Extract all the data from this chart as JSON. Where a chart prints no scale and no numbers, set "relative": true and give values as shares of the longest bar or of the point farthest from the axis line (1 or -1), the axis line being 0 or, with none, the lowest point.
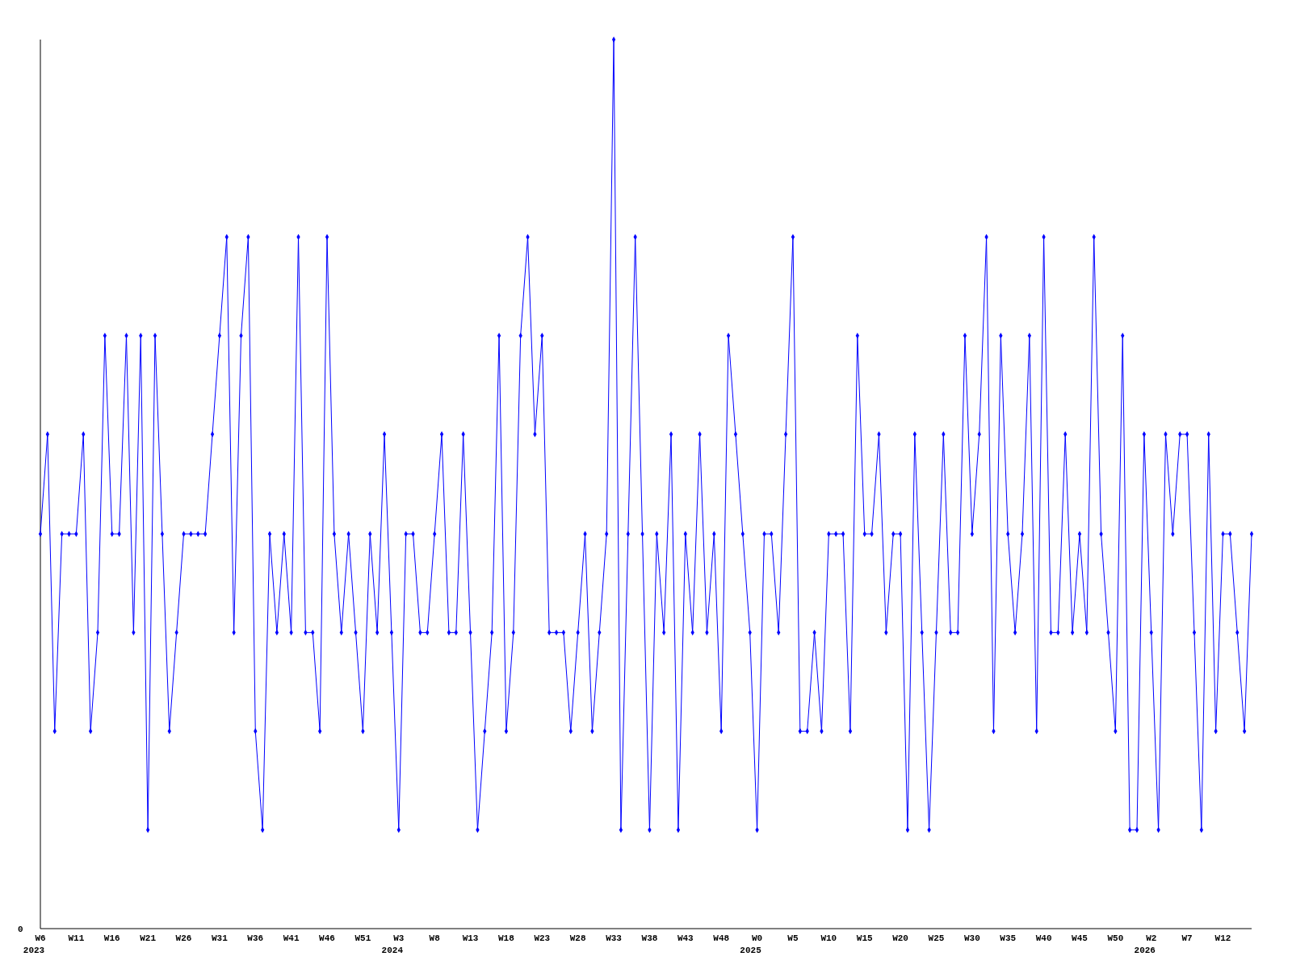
{
  "chart_data": {
    "type": "line",
    "relative": true,
    "marker": "diamond",
    "annotations": [
      "0",
      "2023",
      "2024",
      "2025",
      "2026"
    ],
    "categories": [
      "W6",
      null,
      null,
      null,
      null,
      "W11",
      null,
      null,
      null,
      null,
      "W16",
      null,
      null,
      null,
      null,
      "W21",
      null,
      null,
      null,
      null,
      "W26",
      null,
      null,
      null,
      null,
      "W31",
      null,
      null,
      null,
      null,
      "W36",
      null,
      null,
      null,
      null,
      "W41",
      null,
      null,
      null,
      null,
      "W46",
      null,
      null,
      null,
      null,
      "W51",
      null,
      null,
      null,
      null,
      "W3",
      null,
      null,
      null,
      null,
      "W8",
      null,
      null,
      null,
      null,
      "W13",
      null,
      null,
      null,
      null,
      "W18",
      null,
      null,
      null,
      null,
      "W23",
      null,
      null,
      null,
      null,
      "W28",
      null,
      null,
      null,
      null,
      "W33",
      null,
      null,
      null,
      null,
      "W38",
      null,
      null,
      null,
      null,
      "W43",
      null,
      null,
      null,
      null,
      "W48",
      null,
      null,
      null,
      null,
      "W0",
      null,
      null,
      null,
      null,
      "W5",
      null,
      null,
      null,
      null,
      "W10",
      null,
      null,
      null,
      null,
      "W15",
      null,
      null,
      null,
      null,
      "W20",
      null,
      null,
      null,
      null,
      "W25",
      null,
      null,
      null,
      null,
      "W30",
      null,
      null,
      null,
      null,
      "W35",
      null,
      null,
      null,
      null,
      "W40",
      null,
      null,
      null,
      null,
      "W45",
      null,
      null,
      null,
      null,
      "W50",
      null,
      null,
      null,
      null,
      "W2",
      null,
      null,
      null,
      null,
      "W7",
      null,
      null,
      null,
      null,
      "W12",
      null,
      null,
      null,
      null
    ],
    "series": [
      {
        "color": "#0000ff",
        "values": [
          0.444,
          0.556,
          0.222,
          0.444,
          0.444,
          0.444,
          0.556,
          0.222,
          0.333,
          0.667,
          0.444,
          0.444,
          0.667,
          0.333,
          0.667,
          0.111,
          0.667,
          0.444,
          0.222,
          0.333,
          0.444,
          0.444,
          0.444,
          0.444,
          0.556,
          0.667,
          0.778,
          0.333,
          0.667,
          0.778,
          0.222,
          0.111,
          0.444,
          0.333,
          0.444,
          0.333,
          0.778,
          0.333,
          0.333,
          0.222,
          0.778,
          0.444,
          0.333,
          0.444,
          0.333,
          0.222,
          0.444,
          0.333,
          0.556,
          0.333,
          0.111,
          0.444,
          0.444,
          0.333,
          0.333,
          0.444,
          0.556,
          0.333,
          0.333,
          0.556,
          0.333,
          0.111,
          0.222,
          0.333,
          0.667,
          0.222,
          0.333,
          0.667,
          0.778,
          0.556,
          0.667,
          0.333,
          0.333,
          0.333,
          0.222,
          0.333,
          0.444,
          0.222,
          0.333,
          0.444,
          1,
          0.111,
          0.444,
          0.778,
          0.444,
          0.111,
          0.444,
          0.333,
          0.556,
          0.111,
          0.444,
          0.333,
          0.556,
          0.333,
          0.444,
          0.222,
          0.667,
          0.556,
          0.444,
          0.333,
          0.111,
          0.444,
          0.444,
          0.333,
          0.556,
          0.778,
          0.222,
          0.222,
          0.333,
          0.222,
          0.444,
          0.444,
          0.444,
          0.222,
          0.667,
          0.444,
          0.444,
          0.556,
          0.333,
          0.444,
          0.444,
          0.111,
          0.556,
          0.333,
          0.111,
          0.333,
          0.556,
          0.333,
          0.333,
          0.667,
          0.444,
          0.556,
          0.778,
          0.222,
          0.667,
          0.444,
          0.333,
          0.444,
          0.667,
          0.222,
          0.778,
          0.333,
          0.333,
          0.556,
          0.333,
          0.444,
          0.333,
          0.778,
          0.444,
          0.333,
          0.222,
          0.667,
          0.111,
          0.111,
          0.556,
          0.333,
          0.111,
          0.556,
          0.444,
          0.556,
          0.556,
          0.333,
          0.111,
          0.556,
          0.222,
          0.444,
          0.444,
          0.333,
          0.222,
          0.444
        ]
      }
    ]
  }
}
